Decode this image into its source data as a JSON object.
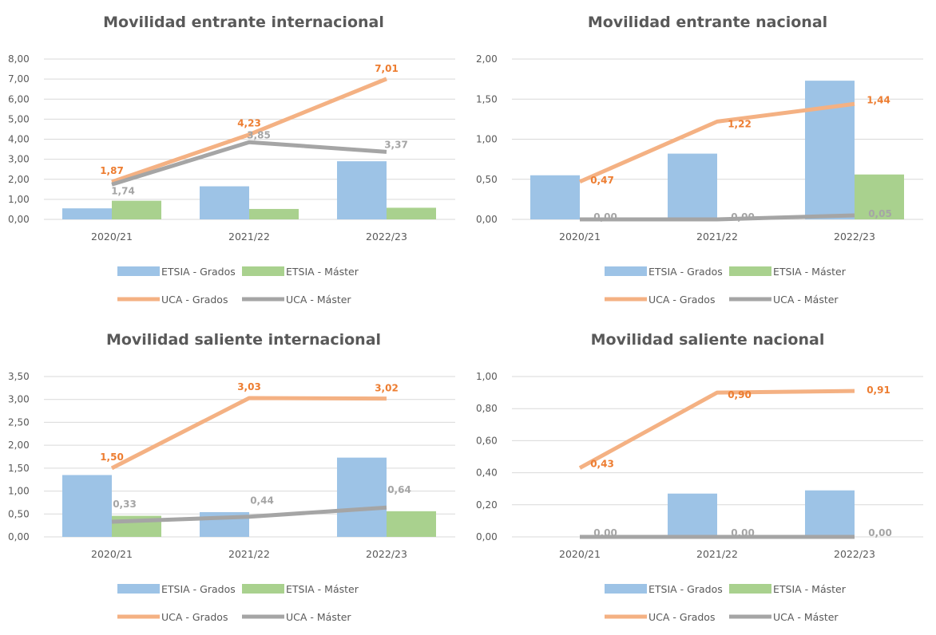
{
  "colors": {
    "etsia_grados": "#9DC3E6",
    "etsia_master": "#A9D18E",
    "uca_grados": "#F4B183",
    "uca_master": "#A5A5A5",
    "uca_grados_label": "#ED7D31",
    "uca_master_label": "#A5A5A5",
    "grid": "#D9D9D9",
    "text": "#595959"
  },
  "chart_data": [
    {
      "type": "bar",
      "title": "Movilidad entrante internacional",
      "categories": [
        "2020/21",
        "2021/22",
        "2022/23"
      ],
      "ylim": [
        0,
        8
      ],
      "yticks": [
        "0,00",
        "1,00",
        "2,00",
        "3,00",
        "4,00",
        "5,00",
        "6,00",
        "7,00",
        "8,00"
      ],
      "grid": true,
      "legend_position": "bottom",
      "series": [
        {
          "name": "ETSIA - Grados",
          "kind": "bar",
          "values": [
            0.55,
            1.65,
            2.9
          ]
        },
        {
          "name": "ETSIA - Máster",
          "kind": "bar",
          "values": [
            0.93,
            0.52,
            0.58
          ]
        },
        {
          "name": "UCA - Grados",
          "kind": "line",
          "values": [
            1.87,
            4.23,
            7.01
          ],
          "labels": [
            "1,87",
            "4,23",
            "7,01"
          ]
        },
        {
          "name": "UCA - Máster",
          "kind": "line",
          "values": [
            1.74,
            3.85,
            3.37
          ],
          "labels": [
            "1,74",
            "3,85",
            "3,37"
          ]
        }
      ]
    },
    {
      "type": "bar",
      "title": "Movilidad entrante nacional",
      "categories": [
        "2020/21",
        "2021/22",
        "2022/23"
      ],
      "ylim": [
        0,
        2
      ],
      "yticks": [
        "0,00",
        "0,50",
        "1,00",
        "1,50",
        "2,00"
      ],
      "grid": true,
      "legend_position": "bottom",
      "series": [
        {
          "name": "ETSIA - Grados",
          "kind": "bar",
          "values": [
            0.55,
            0.82,
            1.73
          ]
        },
        {
          "name": "ETSIA - Máster",
          "kind": "bar",
          "values": [
            0,
            0,
            0.56
          ]
        },
        {
          "name": "UCA - Grados",
          "kind": "line",
          "values": [
            0.47,
            1.22,
            1.44
          ],
          "labels": [
            "0,47",
            "1,22",
            "1,44"
          ]
        },
        {
          "name": "UCA - Máster",
          "kind": "line",
          "values": [
            0.0,
            0.0,
            0.05
          ],
          "labels": [
            "0,00",
            "0,00",
            "0,05"
          ]
        }
      ]
    },
    {
      "type": "bar",
      "title": "Movilidad saliente internacional",
      "categories": [
        "2020/21",
        "2021/22",
        "2022/23"
      ],
      "ylim": [
        0,
        3.5
      ],
      "yticks": [
        "0,00",
        "0,50",
        "1,00",
        "1,50",
        "2,00",
        "2,50",
        "3,00",
        "3,50"
      ],
      "grid": true,
      "legend_position": "bottom",
      "series": [
        {
          "name": "ETSIA - Grados",
          "kind": "bar",
          "values": [
            1.35,
            0.54,
            1.73
          ]
        },
        {
          "name": "ETSIA - Máster",
          "kind": "bar",
          "values": [
            0.46,
            0,
            0.56
          ]
        },
        {
          "name": "UCA - Grados",
          "kind": "line",
          "values": [
            1.5,
            3.03,
            3.02
          ],
          "labels": [
            "1,50",
            "3,03",
            "3,02"
          ]
        },
        {
          "name": "UCA - Máster",
          "kind": "line",
          "values": [
            0.33,
            0.44,
            0.64
          ],
          "labels": [
            "0,33",
            "0,44",
            "0,64"
          ]
        }
      ]
    },
    {
      "type": "bar",
      "title": "Movilidad saliente nacional",
      "categories": [
        "2020/21",
        "2021/22",
        "2022/23"
      ],
      "ylim": [
        0,
        1
      ],
      "yticks": [
        "0,00",
        "0,20",
        "0,40",
        "0,60",
        "0,80",
        "1,00"
      ],
      "grid": true,
      "legend_position": "bottom",
      "series": [
        {
          "name": "ETSIA - Grados",
          "kind": "bar",
          "values": [
            0,
            0.27,
            0.29
          ]
        },
        {
          "name": "ETSIA - Máster",
          "kind": "bar",
          "values": [
            0,
            0,
            0
          ]
        },
        {
          "name": "UCA - Grados",
          "kind": "line",
          "values": [
            0.43,
            0.9,
            0.91
          ],
          "labels": [
            "0,43",
            "0,90",
            "0,91"
          ]
        },
        {
          "name": "UCA - Máster",
          "kind": "line",
          "values": [
            0.0,
            0.0,
            0.0
          ],
          "labels": [
            "0,00",
            "0,00",
            "0,00"
          ]
        }
      ]
    }
  ]
}
